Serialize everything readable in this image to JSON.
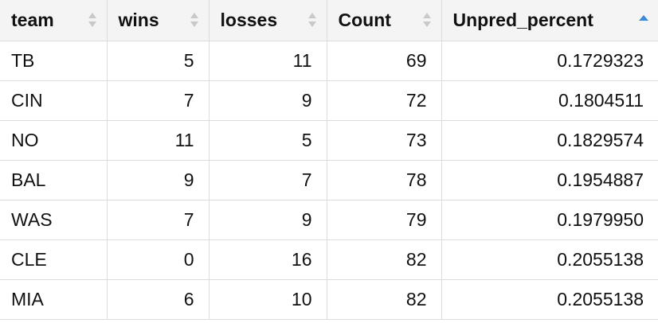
{
  "columns": [
    {
      "key": "team",
      "label": "team",
      "sort": "none"
    },
    {
      "key": "wins",
      "label": "wins",
      "sort": "none"
    },
    {
      "key": "losses",
      "label": "losses",
      "sort": "none"
    },
    {
      "key": "count",
      "label": "Count",
      "sort": "none"
    },
    {
      "key": "unpred",
      "label": "Unpred_percent",
      "sort": "ascending"
    }
  ],
  "rows": [
    {
      "team": "TB",
      "wins": "5",
      "losses": "11",
      "count": "69",
      "unpred": "0.1729323"
    },
    {
      "team": "CIN",
      "wins": "7",
      "losses": "9",
      "count": "72",
      "unpred": "0.1804511"
    },
    {
      "team": "NO",
      "wins": "11",
      "losses": "5",
      "count": "73",
      "unpred": "0.1829574"
    },
    {
      "team": "BAL",
      "wins": "9",
      "losses": "7",
      "count": "78",
      "unpred": "0.1954887"
    },
    {
      "team": "WAS",
      "wins": "7",
      "losses": "9",
      "count": "79",
      "unpred": "0.1979950"
    },
    {
      "team": "CLE",
      "wins": "0",
      "losses": "16",
      "count": "82",
      "unpred": "0.2055138"
    },
    {
      "team": "MIA",
      "wins": "6",
      "losses": "10",
      "count": "82",
      "unpred": "0.2055138"
    }
  ],
  "colors": {
    "header_bg": "#f4f4f4",
    "border": "#dcdcdc",
    "sort_inactive": "#c8c8c8",
    "sort_active": "#2f8be6"
  }
}
